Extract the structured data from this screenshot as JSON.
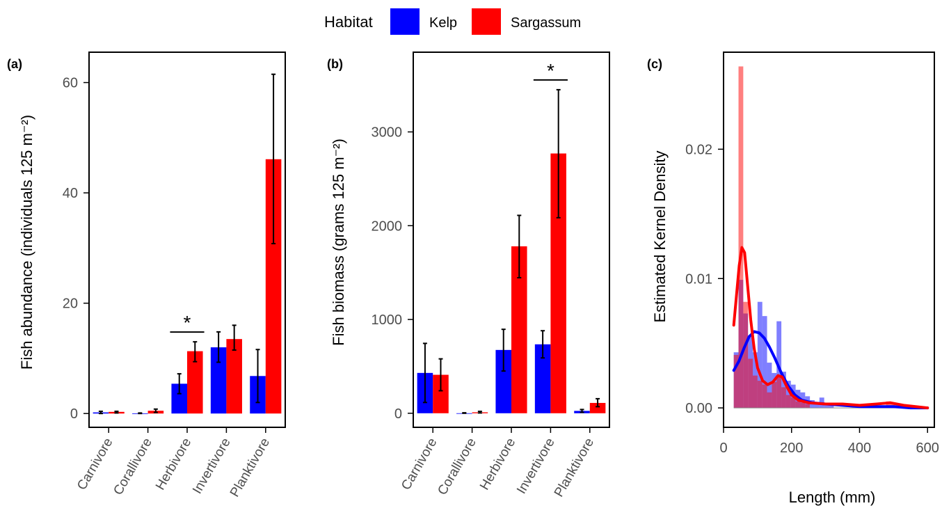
{
  "legend": {
    "title": "Habitat",
    "items": [
      {
        "label": "Kelp",
        "color": "#0000FF"
      },
      {
        "label": "Sargassum",
        "color": "#FF0000"
      }
    ]
  },
  "colors": {
    "kelp": "#0000FF",
    "sargassum": "#FF0000"
  },
  "chart_data": [
    {
      "panel": "(a)",
      "type": "bar",
      "ylabel": "Fish abundance (individuals 125 m⁻²)",
      "categories": [
        "Carnivore",
        "Corallivore",
        "Herbivore",
        "Invertivore",
        "Planktivore"
      ],
      "ylim": [
        -2.5,
        65.5
      ],
      "yticks": [
        0,
        20,
        40,
        60
      ],
      "series": [
        {
          "name": "Kelp",
          "values": [
            0.2,
            0.0,
            5.4,
            12.0,
            6.8
          ],
          "err_low": [
            0.0,
            0.0,
            3.6,
            9.3,
            2.0
          ],
          "err_high": [
            0.4,
            0.1,
            7.2,
            14.8,
            11.6
          ]
        },
        {
          "name": "Sargassum",
          "values": [
            0.3,
            0.5,
            11.3,
            13.5,
            46.1
          ],
          "err_low": [
            0.1,
            0.2,
            9.4,
            11.5,
            30.8
          ],
          "err_high": [
            0.4,
            0.8,
            13.0,
            16.0,
            61.5
          ]
        }
      ],
      "annotations": [
        {
          "text": "*",
          "category": "Herbivore"
        }
      ]
    },
    {
      "panel": "(b)",
      "type": "bar",
      "ylabel": "Fish biomass (grams 125 m⁻²)",
      "categories": [
        "Carnivore",
        "Corallivore",
        "Herbivore",
        "Invertivore",
        "Planktivore"
      ],
      "ylim": [
        -150,
        3850
      ],
      "yticks": [
        0,
        1000,
        2000,
        3000
      ],
      "series": [
        {
          "name": "Kelp",
          "values": [
            430,
            0,
            675,
            735,
            25
          ],
          "err_low": [
            115,
            0,
            450,
            590,
            10
          ],
          "err_high": [
            745,
            5,
            895,
            880,
            40
          ]
        },
        {
          "name": "Sargassum",
          "values": [
            410,
            10,
            1780,
            2770,
            110
          ],
          "err_low": [
            240,
            3,
            1445,
            2085,
            70
          ],
          "err_high": [
            580,
            20,
            2110,
            3450,
            155
          ]
        }
      ],
      "annotations": [
        {
          "text": "*",
          "category": "Invertivore"
        }
      ]
    },
    {
      "panel": "(c)",
      "type": "area",
      "xlabel": "Length (mm)",
      "ylabel": "Estimated Kernel Density",
      "xlim": [
        0,
        620
      ],
      "ylim": [
        -0.0015,
        0.0275
      ],
      "xticks": [
        0,
        200,
        400,
        600
      ],
      "yticks": [
        0.0,
        0.01,
        0.02
      ],
      "ytick_labels": [
        "0.00",
        "0.01",
        "0.02"
      ],
      "histogram": {
        "bin_width": 14,
        "kelp": [
          {
            "x": 37,
            "y": 0.0043
          },
          {
            "x": 51,
            "y": 0.0099
          },
          {
            "x": 65,
            "y": 0.0073
          },
          {
            "x": 79,
            "y": 0.0056
          },
          {
            "x": 93,
            "y": 0.0043
          },
          {
            "x": 107,
            "y": 0.0082
          },
          {
            "x": 121,
            "y": 0.0071
          },
          {
            "x": 135,
            "y": 0.0035
          },
          {
            "x": 149,
            "y": 0.0027
          },
          {
            "x": 163,
            "y": 0.0067
          },
          {
            "x": 177,
            "y": 0.0028
          },
          {
            "x": 191,
            "y": 0.0021
          },
          {
            "x": 205,
            "y": 0.0018
          },
          {
            "x": 219,
            "y": 0.0014
          },
          {
            "x": 233,
            "y": 0.0012
          },
          {
            "x": 247,
            "y": 0.0009
          },
          {
            "x": 261,
            "y": 0.0006
          },
          {
            "x": 275,
            "y": 0.0004
          },
          {
            "x": 289,
            "y": 0.0008
          },
          {
            "x": 303,
            "y": 0.0004
          },
          {
            "x": 317,
            "y": 0.0003
          }
        ],
        "sargassum": [
          {
            "x": 37,
            "y": 0.0041
          },
          {
            "x": 51,
            "y": 0.0264
          },
          {
            "x": 65,
            "y": 0.0082
          },
          {
            "x": 79,
            "y": 0.0038
          },
          {
            "x": 93,
            "y": 0.0025
          },
          {
            "x": 107,
            "y": 0.0021
          },
          {
            "x": 121,
            "y": 0.0018
          },
          {
            "x": 135,
            "y": 0.0012
          },
          {
            "x": 149,
            "y": 0.002
          },
          {
            "x": 163,
            "y": 0.0024
          },
          {
            "x": 177,
            "y": 0.0016
          },
          {
            "x": 191,
            "y": 0.001
          },
          {
            "x": 205,
            "y": 0.0008
          },
          {
            "x": 219,
            "y": 0.0005
          },
          {
            "x": 233,
            "y": 0.0004
          },
          {
            "x": 247,
            "y": 0.0003
          },
          {
            "x": 485,
            "y": 0.0005
          },
          {
            "x": 499,
            "y": 0.0003
          }
        ]
      },
      "density": {
        "kelp": [
          {
            "x": 30,
            "y": 0.0029
          },
          {
            "x": 45,
            "y": 0.0036
          },
          {
            "x": 60,
            "y": 0.0046
          },
          {
            "x": 75,
            "y": 0.0055
          },
          {
            "x": 90,
            "y": 0.0059
          },
          {
            "x": 105,
            "y": 0.0058
          },
          {
            "x": 120,
            "y": 0.0054
          },
          {
            "x": 135,
            "y": 0.0047
          },
          {
            "x": 150,
            "y": 0.0039
          },
          {
            "x": 170,
            "y": 0.0027
          },
          {
            "x": 190,
            "y": 0.0017
          },
          {
            "x": 210,
            "y": 0.001
          },
          {
            "x": 230,
            "y": 0.0006
          },
          {
            "x": 260,
            "y": 0.0004
          },
          {
            "x": 300,
            "y": 0.0003
          },
          {
            "x": 350,
            "y": 0.0002
          },
          {
            "x": 400,
            "y": 0.0001
          },
          {
            "x": 450,
            "y": 0.0001
          },
          {
            "x": 500,
            "y": 0.0001
          },
          {
            "x": 550,
            "y": 0.0
          },
          {
            "x": 600,
            "y": 0.0
          }
        ],
        "sargassum": [
          {
            "x": 30,
            "y": 0.0064
          },
          {
            "x": 38,
            "y": 0.0087
          },
          {
            "x": 46,
            "y": 0.011
          },
          {
            "x": 54,
            "y": 0.0124
          },
          {
            "x": 62,
            "y": 0.012
          },
          {
            "x": 70,
            "y": 0.0097
          },
          {
            "x": 80,
            "y": 0.0068
          },
          {
            "x": 90,
            "y": 0.0046
          },
          {
            "x": 100,
            "y": 0.0031
          },
          {
            "x": 115,
            "y": 0.0021
          },
          {
            "x": 130,
            "y": 0.0018
          },
          {
            "x": 145,
            "y": 0.002
          },
          {
            "x": 160,
            "y": 0.0025
          },
          {
            "x": 172,
            "y": 0.0024
          },
          {
            "x": 185,
            "y": 0.0017
          },
          {
            "x": 200,
            "y": 0.001
          },
          {
            "x": 220,
            "y": 0.0006
          },
          {
            "x": 250,
            "y": 0.0004
          },
          {
            "x": 300,
            "y": 0.0003
          },
          {
            "x": 350,
            "y": 0.0003
          },
          {
            "x": 400,
            "y": 0.0002
          },
          {
            "x": 450,
            "y": 0.0003
          },
          {
            "x": 490,
            "y": 0.0004
          },
          {
            "x": 530,
            "y": 0.0002
          },
          {
            "x": 600,
            "y": 0.0
          }
        ]
      }
    }
  ]
}
